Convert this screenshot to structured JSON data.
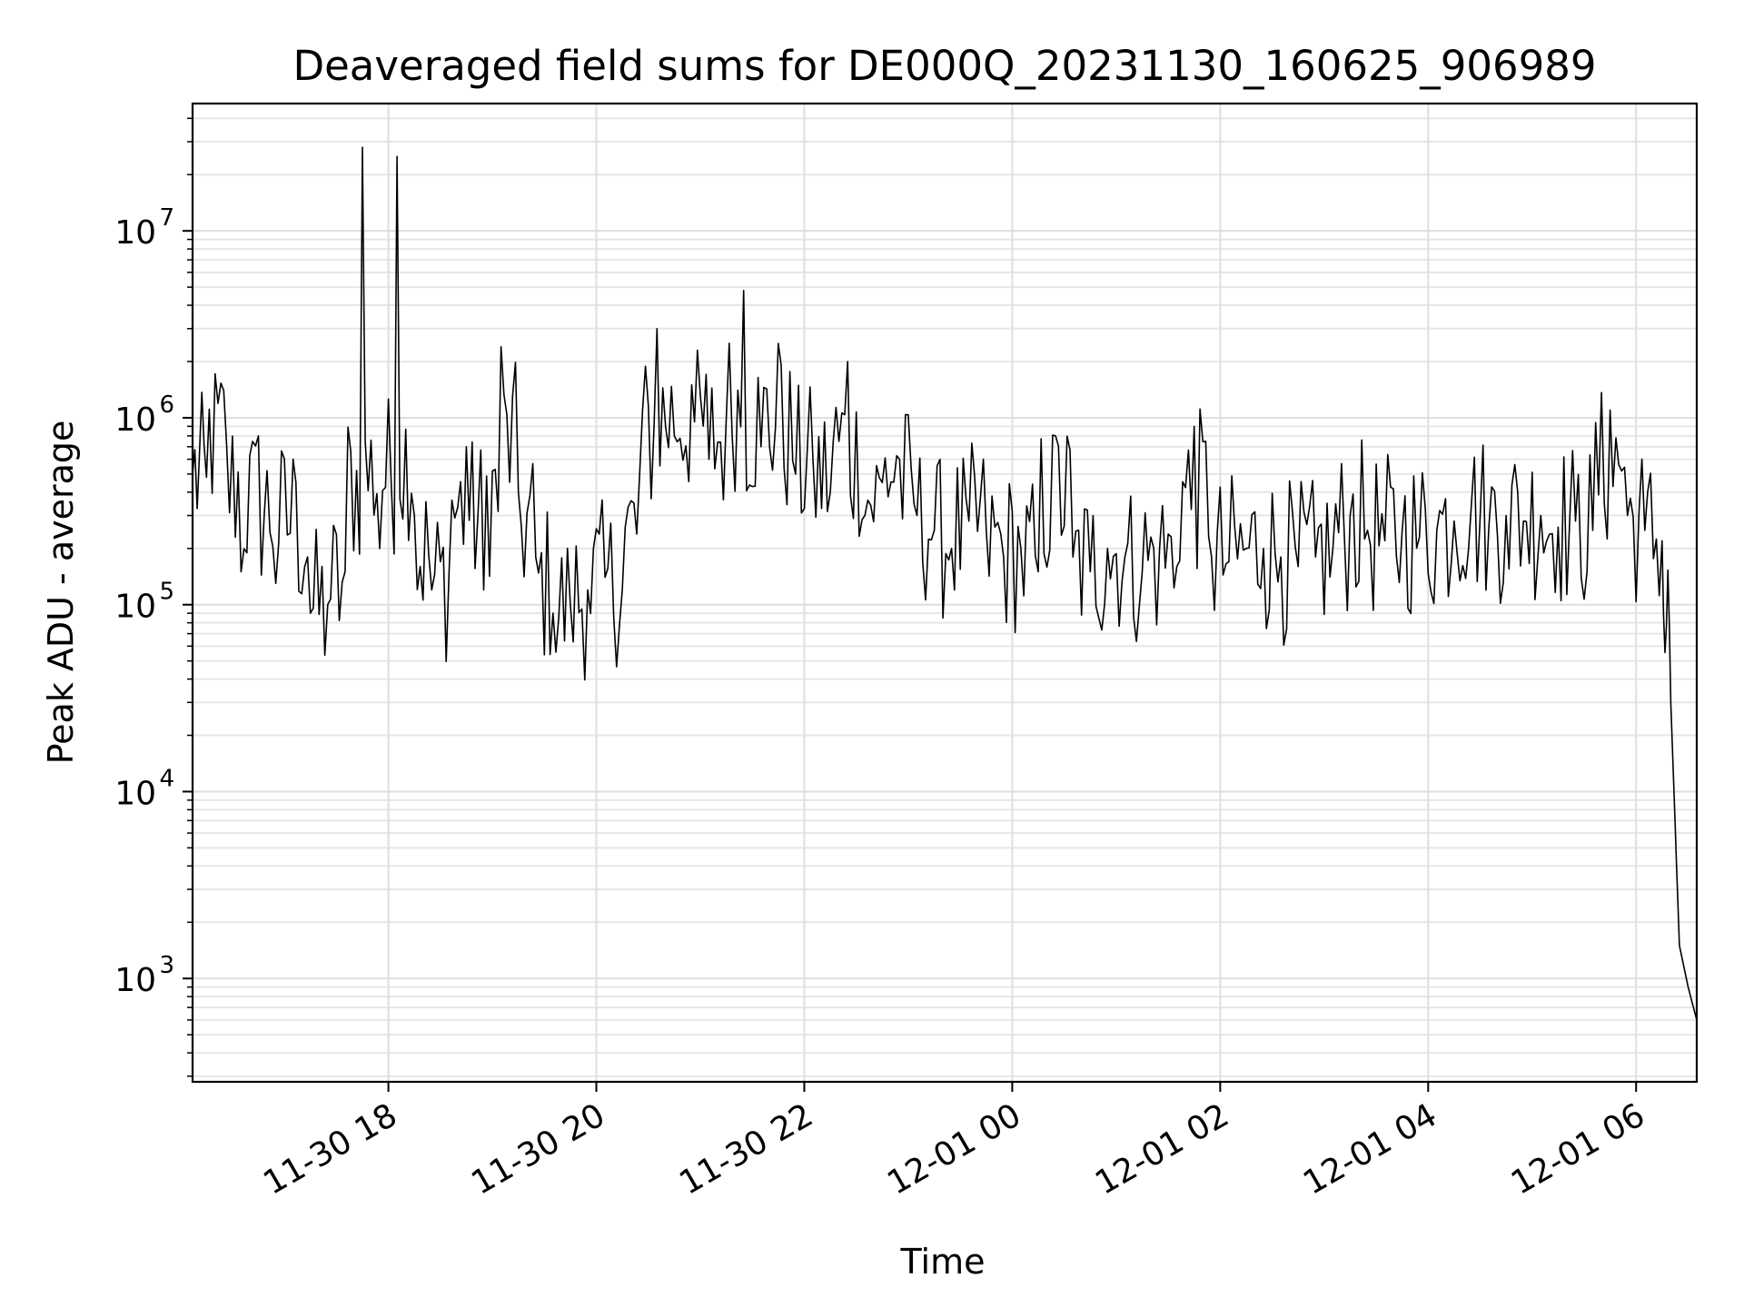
{
  "chart_data": {
    "type": "line",
    "title": "Deaveraged field sums for DE000Q_20231130_160625_906989",
    "xlabel": "Time",
    "ylabel": "Peak ADU - average",
    "yscale": "log",
    "grid": true,
    "xlim": [
      "2023-11-30 16:07",
      "2023-12-01 06:35"
    ],
    "ylim": [
      280,
      48000000
    ],
    "x_ticks": [
      {
        "value": "2023-11-30 18:00",
        "label": "11-30 18"
      },
      {
        "value": "2023-11-30 20:00",
        "label": "11-30 20"
      },
      {
        "value": "2023-11-30 22:00",
        "label": "11-30 22"
      },
      {
        "value": "2023-12-01 00:00",
        "label": "12-01 00"
      },
      {
        "value": "2023-12-01 02:00",
        "label": "12-01 02"
      },
      {
        "value": "2023-12-01 04:00",
        "label": "12-01 04"
      },
      {
        "value": "2023-12-01 06:00",
        "label": "12-01 06"
      }
    ],
    "y_ticks": [
      {
        "value": 1000,
        "base": "10",
        "exp": "3"
      },
      {
        "value": 10000,
        "base": "10",
        "exp": "4"
      },
      {
        "value": 100000,
        "base": "10",
        "exp": "5"
      },
      {
        "value": 1000000,
        "base": "10",
        "exp": "6"
      },
      {
        "value": 10000000,
        "base": "10",
        "exp": "7"
      }
    ],
    "series": [
      {
        "color": "#000000",
        "x": [
          "2023-11-30 16:07",
          "2023-11-30 16:15",
          "2023-11-30 16:25",
          "2023-11-30 16:35",
          "2023-11-30 16:45",
          "2023-11-30 16:55",
          "2023-11-30 17:05",
          "2023-11-30 17:15",
          "2023-11-30 17:25",
          "2023-11-30 17:35",
          "2023-11-30 17:45",
          "2023-11-30 17:55",
          "2023-11-30 18:05",
          "2023-11-30 18:15",
          "2023-11-30 18:25",
          "2023-11-30 18:35",
          "2023-11-30 18:45",
          "2023-11-30 18:55",
          "2023-11-30 19:05",
          "2023-11-30 19:15",
          "2023-11-30 19:25",
          "2023-11-30 19:35",
          "2023-11-30 19:45",
          "2023-11-30 19:55",
          "2023-11-30 20:05",
          "2023-11-30 20:15",
          "2023-11-30 20:25",
          "2023-11-30 20:35",
          "2023-11-30 20:45",
          "2023-11-30 20:55",
          "2023-11-30 21:05",
          "2023-11-30 21:15",
          "2023-11-30 21:25",
          "2023-11-30 21:35",
          "2023-11-30 21:45",
          "2023-11-30 21:55",
          "2023-11-30 22:05",
          "2023-11-30 22:15",
          "2023-11-30 22:25",
          "2023-11-30 22:35",
          "2023-11-30 22:45",
          "2023-11-30 22:55",
          "2023-11-30 23:05",
          "2023-11-30 23:15",
          "2023-11-30 23:25",
          "2023-11-30 23:35",
          "2023-11-30 23:45",
          "2023-11-30 23:55",
          "2023-12-01 00:05",
          "2023-12-01 00:15",
          "2023-12-01 00:25",
          "2023-12-01 00:35",
          "2023-12-01 00:45",
          "2023-12-01 00:55",
          "2023-12-01 01:05",
          "2023-12-01 01:15",
          "2023-12-01 01:25",
          "2023-12-01 01:35",
          "2023-12-01 01:45",
          "2023-12-01 01:55",
          "2023-12-01 02:05",
          "2023-12-01 02:15",
          "2023-12-01 02:25",
          "2023-12-01 02:35",
          "2023-12-01 02:45",
          "2023-12-01 02:55",
          "2023-12-01 03:05",
          "2023-12-01 03:15",
          "2023-12-01 03:25",
          "2023-12-01 03:35",
          "2023-12-01 03:45",
          "2023-12-01 03:55",
          "2023-12-01 04:05",
          "2023-12-01 04:15",
          "2023-12-01 04:25",
          "2023-12-01 04:35",
          "2023-12-01 04:45",
          "2023-12-01 04:55",
          "2023-12-01 05:05",
          "2023-12-01 05:15",
          "2023-12-01 05:25",
          "2023-12-01 05:35",
          "2023-12-01 05:45",
          "2023-12-01 05:55",
          "2023-12-01 06:05",
          "2023-12-01 06:15",
          "2023-12-01 06:20",
          "2023-12-01 06:25",
          "2023-12-01 06:30",
          "2023-12-01 06:35"
        ],
        "y": [
          500000,
          480000,
          1400000,
          150000,
          800000,
          130000,
          600000,
          90000,
          100000,
          150000,
          28000000,
          200000,
          25000000,
          300000,
          120000,
          150000,
          700000,
          120000,
          2400000,
          400000,
          180000,
          90000,
          100000,
          120000,
          140000,
          120000,
          500000,
          3000000,
          800000,
          1500000,
          600000,
          1000000,
          4800000,
          700000,
          2500000,
          500000,
          600000,
          400000,
          2000000,
          300000,
          450000,
          600000,
          300000,
          250000,
          200000,
          280000,
          250000,
          180000,
          200000,
          150000,
          800000,
          180000,
          150000,
          200000,
          180000,
          150000,
          200000,
          160000,
          900000,
          180000,
          170000,
          200000,
          200000,
          180000,
          160000,
          180000,
          200000,
          300000,
          250000,
          220000,
          250000,
          230000,
          250000,
          280000,
          350000,
          260000,
          300000,
          280000,
          300000,
          260000,
          280000,
          250000,
          1100000,
          300000,
          250000,
          220000,
          30000,
          1500,
          900,
          600
        ]
      }
    ]
  }
}
